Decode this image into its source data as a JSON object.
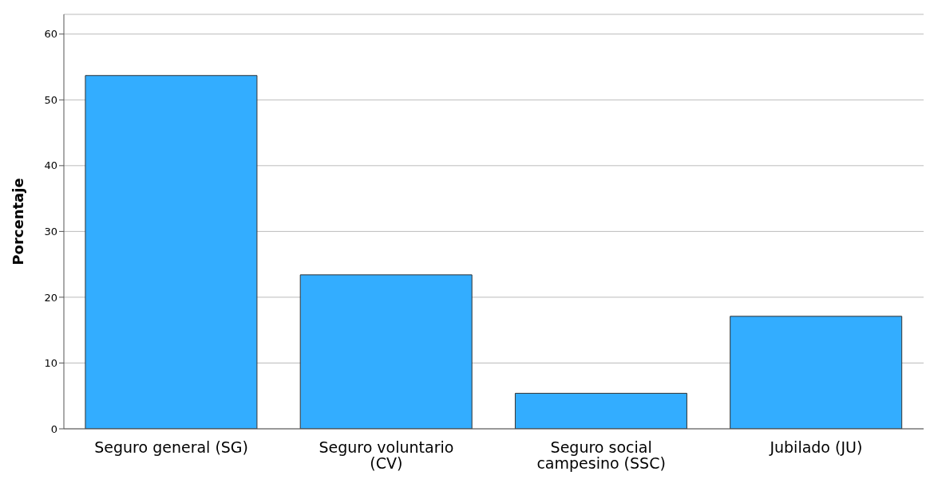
{
  "chart_data": {
    "type": "bar",
    "ylabel": "Porcentaje",
    "categories": [
      "Seguro general (SG)",
      "Seguro voluntario (CV)",
      "Seguro social campesino (SSC)",
      "Jubilado (JU)"
    ],
    "values": [
      53.7,
      23.4,
      5.4,
      17.1
    ],
    "color": "#33adff",
    "ylim": [
      0,
      63
    ],
    "yticks": [
      0,
      10,
      20,
      30,
      40,
      50,
      60
    ],
    "grid": "y"
  }
}
